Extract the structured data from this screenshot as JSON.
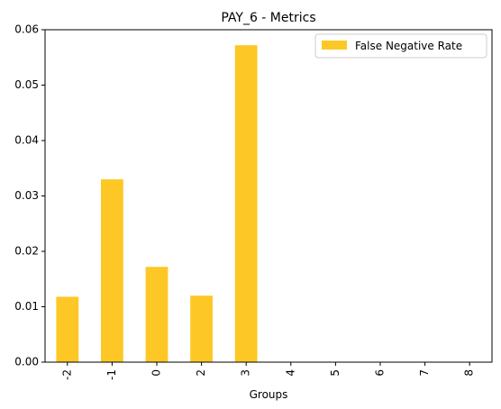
{
  "chart_data": {
    "type": "bar",
    "title": "PAY_6 - Metrics",
    "xlabel": "Groups",
    "ylabel": "",
    "categories": [
      "-2",
      "-1",
      "0",
      "2",
      "3",
      "4",
      "5",
      "6",
      "7",
      "8"
    ],
    "series": [
      {
        "name": "False Negative Rate",
        "values": [
          0.0118,
          0.033,
          0.0172,
          0.012,
          0.0572,
          0,
          0,
          0,
          0,
          0
        ],
        "color": "#fdc726"
      }
    ],
    "ylim": [
      0,
      0.06
    ],
    "yticks": [
      "0.00",
      "0.01",
      "0.02",
      "0.03",
      "0.04",
      "0.05",
      "0.06"
    ],
    "grid": false,
    "legend_position": "top-right"
  }
}
